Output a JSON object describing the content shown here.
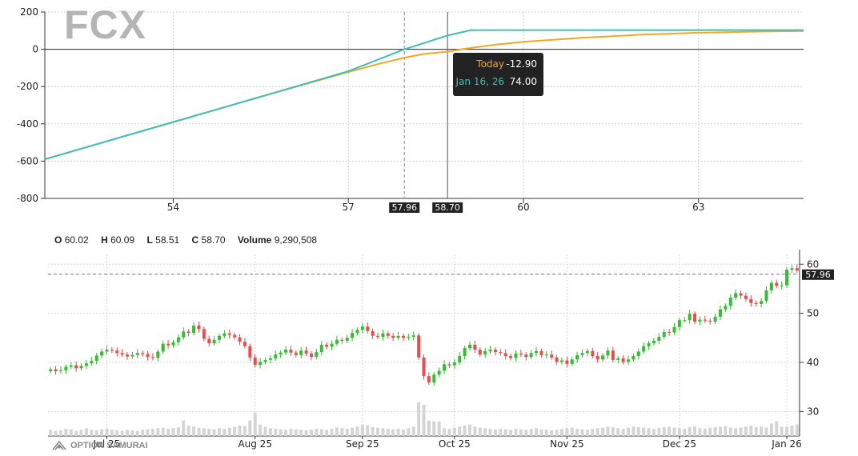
{
  "ticker": "FCX",
  "colors": {
    "today": "#f5a623",
    "expiry": "#3fbfb6",
    "up": "#2fbf2f",
    "down": "#ef4a4a",
    "volume": "#d4d4d4"
  },
  "tooltip": {
    "today_label": "Today",
    "today_value": "-12.90",
    "expiry_label": "Jan 16, 26",
    "expiry_value": "74.00"
  },
  "ohlc": {
    "o_label": "O",
    "o": "60.02",
    "h_label": "H",
    "h": "60.09",
    "l_label": "L",
    "l": "58.51",
    "c_label": "C",
    "c": "58.70",
    "v_label": "Volume",
    "v": "9,290,508"
  },
  "brand": "OPTION SAMURAI",
  "chart_data": [
    {
      "type": "line",
      "title": "FCX",
      "xlabel": "",
      "ylabel": "",
      "xlim": [
        51.8,
        64.8
      ],
      "ylim": [
        -800,
        200
      ],
      "x_ticks": [
        54,
        57,
        60,
        63
      ],
      "y_ticks": [
        200,
        0,
        -200,
        -400,
        -600,
        -800
      ],
      "markers": [
        {
          "label": "57.96",
          "x": 57.96,
          "style": "dashed"
        },
        {
          "label": "58.70",
          "x": 58.7,
          "style": "solid"
        }
      ],
      "series": [
        {
          "name": "Today",
          "x": [
            51.8,
            53,
            54,
            55,
            56,
            57,
            57.5,
            57.96,
            58.3,
            58.7,
            59,
            59.5,
            60,
            61,
            62,
            63,
            64,
            64.8
          ],
          "y": [
            -590,
            -481,
            -391,
            -300,
            -210,
            -122,
            -80,
            -45,
            -25,
            -12.9,
            3,
            24,
            40,
            62,
            78,
            89,
            95,
            98
          ]
        },
        {
          "name": "Jan 16, 26",
          "x": [
            51.8,
            54,
            57,
            57.96,
            58.7,
            59.1,
            64.8
          ],
          "y": [
            -590,
            -390,
            -118,
            0,
            74,
            103,
            103
          ]
        }
      ],
      "grid": true,
      "legend": "none"
    },
    {
      "type": "candlestick",
      "xlabel": "",
      "ylabel": "",
      "ylim": [
        25,
        62
      ],
      "y_ticks": [
        30,
        40,
        50,
        60
      ],
      "x_tick_labels": [
        "Jul 25",
        "Aug 25",
        "Sep 25",
        "Oct 25",
        "Nov 25",
        "Dec 25",
        "Jan 26"
      ],
      "x_tick_index": [
        11,
        40,
        61,
        79,
        101,
        123,
        144
      ],
      "reference_line": {
        "label": "57.96",
        "value": 57.96
      },
      "closes": [
        38.6,
        38.2,
        38.4,
        39.1,
        39.4,
        38.8,
        39.3,
        39.8,
        40.3,
        41.4,
        42.2,
        42.6,
        42.4,
        41.9,
        41.6,
        41.2,
        41.5,
        41.9,
        41.7,
        41.1,
        40.9,
        42.2,
        43.8,
        43.5,
        44.1,
        45.1,
        46.3,
        46.0,
        47.5,
        46.8,
        44.8,
        43.9,
        44.6,
        45.4,
        45.9,
        45.6,
        45.1,
        44.2,
        43.3,
        41.0,
        39.5,
        40.1,
        40.5,
        40.8,
        41.6,
        42.0,
        42.6,
        42.0,
        41.5,
        42.4,
        41.8,
        41.1,
        42.1,
        43.6,
        43.2,
        43.8,
        44.6,
        44.4,
        45.0,
        46.0,
        46.6,
        47.3,
        46.4,
        45.4,
        45.2,
        45.9,
        45.4,
        45.0,
        45.4,
        45.0,
        45.2,
        45.5,
        41.0,
        37.2,
        35.9,
        37.5,
        38.3,
        39.6,
        39.4,
        40.0,
        41.3,
        42.9,
        43.6,
        42.6,
        41.6,
        42.3,
        42.6,
        42.1,
        41.9,
        41.3,
        40.9,
        41.8,
        41.6,
        41.1,
        41.9,
        42.3,
        41.5,
        41.6,
        41.0,
        40.1,
        40.4,
        39.7,
        40.6,
        41.5,
        41.9,
        42.3,
        41.3,
        40.6,
        41.4,
        42.4,
        40.5,
        40.8,
        40.1,
        40.6,
        41.3,
        42.2,
        43.3,
        43.9,
        44.4,
        45.2,
        46.2,
        46.1,
        47.2,
        48.6,
        48.6,
        49.9,
        48.3,
        48.7,
        48.5,
        48.3,
        49.3,
        50.8,
        51.5,
        53.2,
        54.1,
        53.6,
        52.9,
        52.1,
        51.9,
        52.5,
        54.7,
        56.2,
        55.6,
        55.7,
        58.9,
        59.2,
        58.7
      ],
      "volume_ylim": [
        0,
        100
      ],
      "volume": [
        12,
        10,
        11,
        14,
        13,
        10,
        12,
        15,
        12,
        11,
        13,
        14,
        12,
        11,
        10,
        12,
        11,
        10,
        12,
        13,
        14,
        15,
        16,
        14,
        15,
        17,
        30,
        20,
        18,
        16,
        15,
        14,
        13,
        15,
        14,
        16,
        18,
        20,
        19,
        30,
        45,
        22,
        18,
        15,
        14,
        13,
        12,
        14,
        13,
        12,
        11,
        12,
        14,
        13,
        12,
        14,
        16,
        15,
        14,
        16,
        18,
        22,
        20,
        17,
        16,
        15,
        14,
        13,
        14,
        12,
        15,
        18,
        65,
        60,
        30,
        28,
        28,
        15,
        14,
        16,
        18,
        20,
        22,
        18,
        16,
        15,
        14,
        13,
        14,
        13,
        12,
        14,
        13,
        12,
        14,
        15,
        13,
        12,
        11,
        12,
        14,
        15,
        16,
        14,
        13,
        12,
        14,
        15,
        16,
        18,
        17,
        15,
        14,
        16,
        18,
        17,
        16,
        15,
        14,
        16,
        17,
        18,
        16,
        15,
        14,
        17,
        18,
        15,
        14,
        16,
        17,
        18,
        19,
        16,
        15,
        16,
        18,
        20,
        17,
        18,
        16,
        24,
        28,
        18,
        18,
        20,
        22
      ]
    }
  ]
}
